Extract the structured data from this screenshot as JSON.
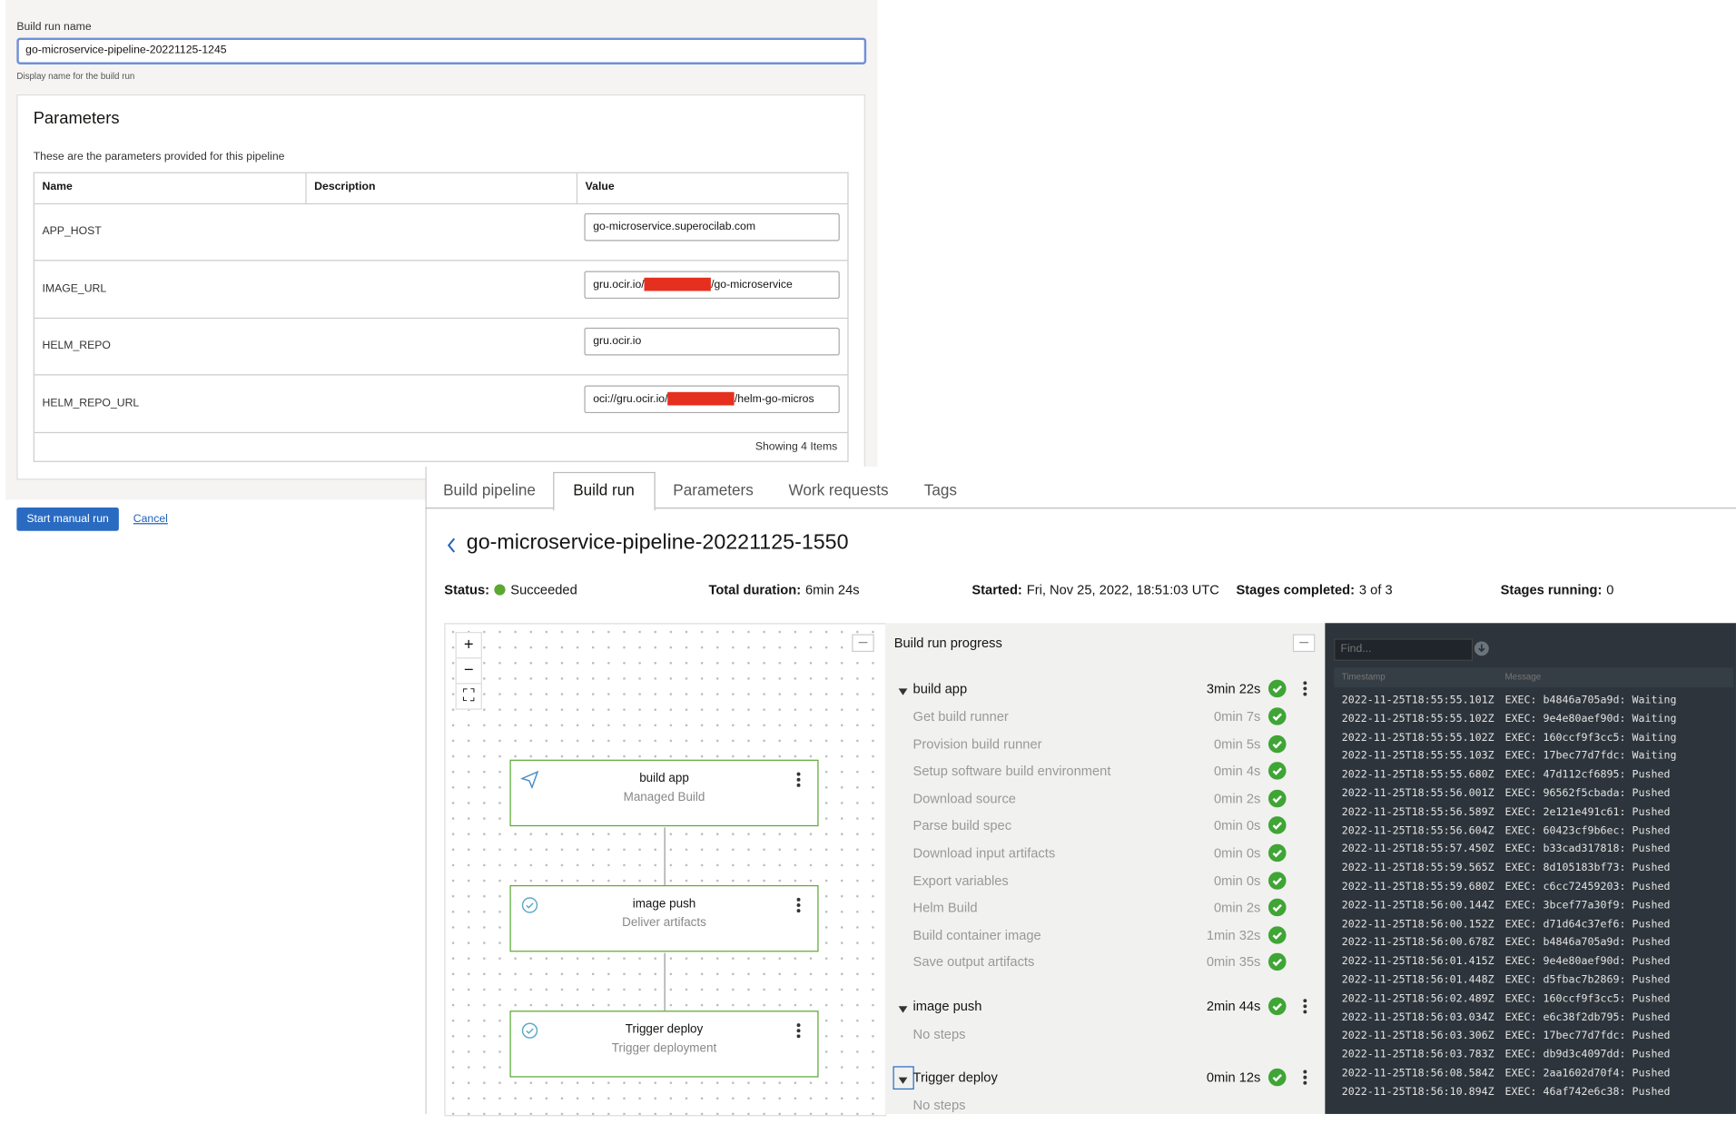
{
  "form": {
    "label": "Build run name",
    "value": "go-microservice-pipeline-20221125-1245",
    "help": "Display name for the build run"
  },
  "parameters": {
    "title": "Parameters",
    "description": "These are the parameters provided for this pipeline",
    "columns": [
      "Name",
      "Description",
      "Value"
    ],
    "rows": [
      {
        "name": "APP_HOST",
        "value": "go-microservice.superocilab.com"
      },
      {
        "name": "IMAGE_URL",
        "value": "gru.ocir.io/",
        "value_suffix": "/go-microservice"
      },
      {
        "name": "HELM_REPO",
        "value": "gru.ocir.io"
      },
      {
        "name": "HELM_REPO_URL",
        "value": "oci://gru.ocir.io/",
        "value_suffix": "/helm-go-micros"
      }
    ],
    "footer": "Showing 4 Items"
  },
  "buttons": {
    "start": "Start manual run",
    "cancel": "Cancel"
  },
  "tabs": [
    "Build pipeline",
    "Build run",
    "Parameters",
    "Work requests",
    "Tags"
  ],
  "active_tab": 1,
  "run": {
    "title": "go-microservice-pipeline-20221125-1550",
    "fields": [
      {
        "label": "Status:",
        "value": "Succeeded"
      },
      {
        "label": "Total duration:",
        "value": "6min 24s"
      },
      {
        "label": "Started:",
        "value": "Fri, Nov 25, 2022, 18:51:03 UTC"
      },
      {
        "label": "Stages completed:",
        "value": "3 of 3"
      },
      {
        "label": "Stages running:",
        "value": "0"
      }
    ]
  },
  "graph": {
    "nodes": [
      {
        "title": "build app",
        "subtitle": "Managed Build"
      },
      {
        "title": "image push",
        "subtitle": "Deliver artifacts"
      },
      {
        "title": "Trigger deploy",
        "subtitle": "Trigger deployment"
      }
    ]
  },
  "progress": {
    "title": "Build run progress",
    "stages": [
      {
        "name": "build app",
        "duration": "3min 22s",
        "steps": [
          {
            "name": "Get build runner",
            "duration": "0min 7s"
          },
          {
            "name": "Provision build runner",
            "duration": "0min 5s"
          },
          {
            "name": "Setup software build environment",
            "duration": "0min 4s"
          },
          {
            "name": "Download source",
            "duration": "0min 2s"
          },
          {
            "name": "Parse build spec",
            "duration": "0min 0s"
          },
          {
            "name": "Download input artifacts",
            "duration": "0min 0s"
          },
          {
            "name": "Export variables",
            "duration": "0min 0s"
          },
          {
            "name": "Helm Build",
            "duration": "0min 2s"
          },
          {
            "name": "Build container image",
            "duration": "1min 32s"
          },
          {
            "name": "Save output artifacts",
            "duration": "0min 35s"
          }
        ]
      },
      {
        "name": "image push",
        "duration": "2min 44s",
        "empty": "No steps"
      },
      {
        "name": "Trigger deploy",
        "duration": "0min 12s",
        "empty": "No steps"
      }
    ]
  },
  "logs": {
    "placeholder": "Find...",
    "columns": [
      "Timestamp",
      "Message"
    ],
    "lines": [
      [
        "2022-11-25T18:55:55.101Z",
        "EXEC: b4846a705a9d: Waiting"
      ],
      [
        "2022-11-25T18:55:55.102Z",
        "EXEC: 9e4e80aef90d: Waiting"
      ],
      [
        "2022-11-25T18:55:55.102Z",
        "EXEC: 160ccf9f3cc5: Waiting"
      ],
      [
        "2022-11-25T18:55:55.103Z",
        "EXEC: 17bec77d7fdc: Waiting"
      ],
      [
        "2022-11-25T18:55:55.680Z",
        "EXEC: 47d112cf6895: Pushed"
      ],
      [
        "2022-11-25T18:55:56.001Z",
        "EXEC: 96562f5cbada: Pushed"
      ],
      [
        "2022-11-25T18:55:56.589Z",
        "EXEC: 2e121e491c61: Pushed"
      ],
      [
        "2022-11-25T18:55:56.604Z",
        "EXEC: 60423cf9b6ec: Pushed"
      ],
      [
        "2022-11-25T18:55:57.450Z",
        "EXEC: b33cad317818: Pushed"
      ],
      [
        "2022-11-25T18:55:59.565Z",
        "EXEC: 8d105183bf73: Pushed"
      ],
      [
        "2022-11-25T18:55:59.680Z",
        "EXEC: c6cc72459203: Pushed"
      ],
      [
        "2022-11-25T18:56:00.144Z",
        "EXEC: 3bcef77a30f9: Pushed"
      ],
      [
        "2022-11-25T18:56:00.152Z",
        "EXEC: d71d64c37ef6: Pushed"
      ],
      [
        "2022-11-25T18:56:00.678Z",
        "EXEC: b4846a705a9d: Pushed"
      ],
      [
        "2022-11-25T18:56:01.415Z",
        "EXEC: 9e4e80aef90d: Pushed"
      ],
      [
        "2022-11-25T18:56:01.448Z",
        "EXEC: d5fbac7b2869: Pushed"
      ],
      [
        "2022-11-25T18:56:02.489Z",
        "EXEC: 160ccf9f3cc5: Pushed"
      ],
      [
        "2022-11-25T18:56:03.034Z",
        "EXEC: e6c38f2db795: Pushed"
      ],
      [
        "2022-11-25T18:56:03.306Z",
        "EXEC: 17bec77d7fdc: Pushed"
      ],
      [
        "2022-11-25T18:56:03.783Z",
        "EXEC: db9d3c4097dd: Pushed"
      ],
      [
        "2022-11-25T18:56:08.584Z",
        "EXEC: 2aa1602d70f4: Pushed"
      ],
      [
        "2022-11-25T18:56:10.894Z",
        "EXEC: 46af742e6c38: Pushed"
      ]
    ]
  }
}
